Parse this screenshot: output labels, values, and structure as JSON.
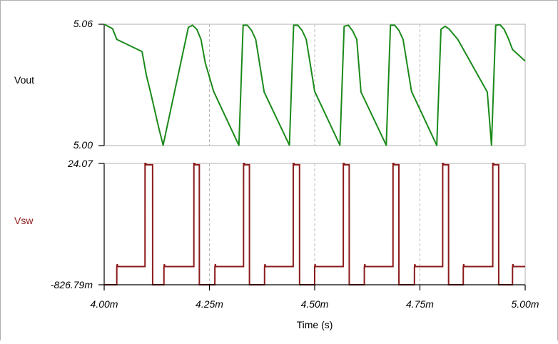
{
  "chart_data": {
    "type": "line",
    "xlabel": "Time (s)",
    "x_ticks": [
      "4.00m",
      "4.25m",
      "4.50m",
      "4.75m",
      "5.00m"
    ],
    "xlim": [
      0.004,
      0.005
    ],
    "grid": "dashed vertical lines",
    "panels": [
      {
        "series_name": "Vout",
        "color": "#1a8a1a",
        "ylim": [
          5.0,
          5.06
        ],
        "y_ticks": [
          "5.06",
          "5.00"
        ],
        "x": [
          0.004,
          0.00402,
          0.00403,
          0.00409,
          0.0041,
          0.00411,
          0.00412,
          0.00413,
          0.00414,
          0.0042,
          0.00421,
          0.00422,
          0.00423,
          0.00424,
          0.00426,
          0.00432,
          0.00433,
          0.00434,
          0.00435,
          0.00436,
          0.00438,
          0.00444,
          0.00445,
          0.00446,
          0.00447,
          0.00448,
          0.0045,
          0.00456,
          0.00457,
          0.00458,
          0.00459,
          0.0046,
          0.00461,
          0.00467,
          0.00468,
          0.00469,
          0.0047,
          0.00471,
          0.00473,
          0.00479,
          0.0048,
          0.00481,
          0.00482,
          0.00484,
          0.00491,
          0.00492,
          0.00493,
          0.00494,
          0.00495,
          0.00496,
          0.00497,
          0.005
        ],
        "y": [
          5.06,
          5.0578,
          5.0525,
          5.0465,
          5.035,
          5.0265,
          5.0175,
          5.0085,
          5.0002,
          5.0585,
          5.0595,
          5.0575,
          5.0525,
          5.041,
          5.0268,
          5.0001,
          5.0595,
          5.0595,
          5.057,
          5.0525,
          5.0265,
          5.0002,
          5.0595,
          5.0595,
          5.057,
          5.0525,
          5.0268,
          5.0002,
          5.059,
          5.0595,
          5.0568,
          5.0525,
          5.0265,
          5.0002,
          5.0595,
          5.0595,
          5.057,
          5.0525,
          5.0268,
          5.0001,
          5.0575,
          5.059,
          5.0575,
          5.0525,
          5.0265,
          5.0002,
          5.0595,
          5.0598,
          5.0575,
          5.053,
          5.0475,
          5.0418
        ]
      },
      {
        "series_name": "Vsw",
        "color": "#8b1a1a",
        "ylim": [
          -0.82679,
          24.07
        ],
        "y_ticks": [
          "24.07",
          "-826.79m"
        ],
        "x": [
          0.004,
          0.0040299,
          0.00403,
          0.004031,
          0.0040325,
          0.004097,
          0.0040971,
          0.004099,
          0.0041,
          0.004113,
          0.004115,
          0.0041151,
          0.0041152,
          0.0041419,
          0.004142,
          0.004143,
          0.004144,
          0.004213,
          0.0042131,
          0.004215,
          0.0042155,
          0.004225,
          0.004226,
          0.0042261,
          0.0042262,
          0.0042629,
          0.004263,
          0.004264,
          0.004265,
          0.004331,
          0.0043311,
          0.004333,
          0.0043335,
          0.004344,
          0.004345,
          0.0043451,
          0.0043452,
          0.0043809,
          0.004381,
          0.004382,
          0.004383,
          0.004449,
          0.0044491,
          0.004451,
          0.0044515,
          0.004463,
          0.004464,
          0.0044641,
          0.0044642,
          0.0044999,
          0.0045,
          0.004501,
          0.004502,
          0.004568,
          0.0045681,
          0.00457,
          0.0045705,
          0.004581,
          0.004582,
          0.0045821,
          0.0045822,
          0.0046179,
          0.004618,
          0.004619,
          0.00462,
          0.004686,
          0.0046861,
          0.004688,
          0.0046885,
          0.004699,
          0.0047,
          0.0047001,
          0.0047002,
          0.0047369,
          0.004737,
          0.004738,
          0.004739,
          0.004804,
          0.0048041,
          0.004806,
          0.0048065,
          0.004817,
          0.004818,
          0.0048181,
          0.0048182,
          0.0048529,
          0.004853,
          0.004854,
          0.004855,
          0.004923,
          0.0049231,
          0.004925,
          0.0049255,
          0.004936,
          0.004937,
          0.0049371,
          0.0049372,
          0.0049699,
          0.00497,
          0.004971,
          0.004972,
          0.005
        ],
        "y": [
          -0.82679,
          -0.82679,
          2.8,
          3.4,
          2.9,
          2.9,
          24.07,
          24.07,
          23.8,
          23.8,
          23.8,
          -0.82679,
          -0.82679,
          -0.82679,
          2.8,
          3.4,
          2.9,
          2.9,
          24.07,
          24.07,
          23.8,
          23.8,
          23.8,
          -0.82679,
          -0.82679,
          -0.82679,
          2.8,
          3.4,
          2.9,
          2.9,
          24.07,
          24.07,
          23.8,
          23.8,
          23.8,
          -0.82679,
          -0.82679,
          -0.82679,
          2.8,
          3.4,
          2.9,
          2.9,
          24.07,
          24.07,
          23.8,
          23.8,
          23.8,
          -0.82679,
          -0.82679,
          -0.82679,
          2.8,
          3.4,
          2.9,
          2.9,
          24.07,
          24.07,
          23.8,
          23.8,
          23.8,
          -0.82679,
          -0.82679,
          -0.82679,
          2.8,
          3.4,
          2.9,
          2.9,
          24.07,
          24.07,
          23.8,
          23.8,
          23.8,
          -0.82679,
          -0.82679,
          -0.82679,
          2.8,
          3.4,
          2.9,
          2.9,
          24.07,
          24.07,
          23.8,
          23.8,
          23.8,
          -0.82679,
          -0.82679,
          -0.82679,
          2.8,
          3.4,
          2.9,
          2.9,
          24.07,
          24.07,
          23.8,
          23.8,
          23.8,
          -0.82679,
          -0.82679,
          -0.82679,
          2.8,
          3.4,
          2.9,
          2.9
        ]
      }
    ]
  }
}
